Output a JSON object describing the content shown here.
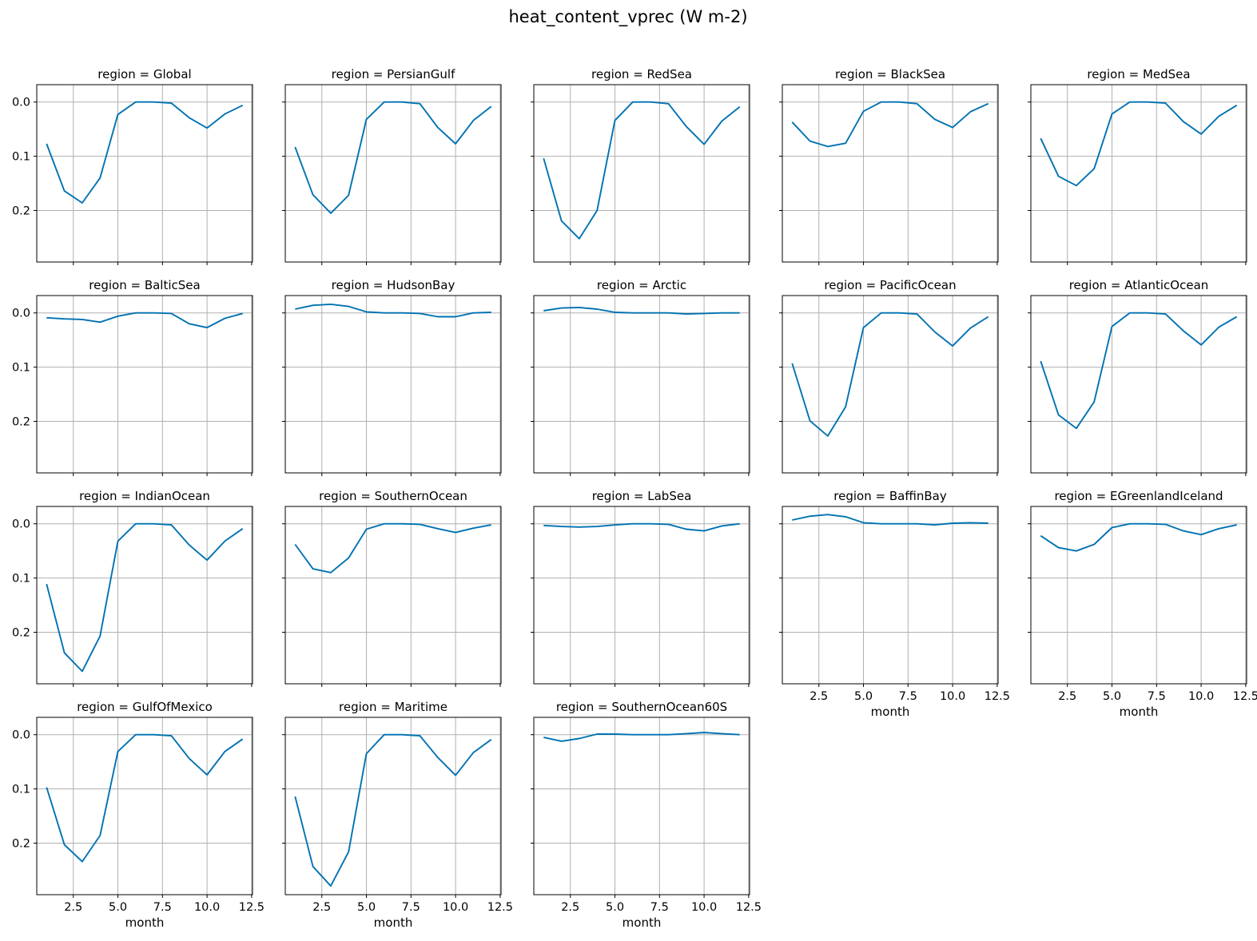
{
  "chart_data": {
    "type": "line",
    "title": "heat_content_vprec (W m-2)",
    "xlabel": "month",
    "ylabel": "",
    "xlim": [
      0.45,
      12.55
    ],
    "ylim": [
      0.295,
      -0.032
    ],
    "y_inverted": true,
    "grid": true,
    "color": "#0072b2",
    "x": [
      1,
      2,
      3,
      4,
      5,
      6,
      7,
      8,
      9,
      10,
      11,
      12
    ],
    "x_ticks": [
      2.5,
      5.0,
      7.5,
      10.0,
      12.5
    ],
    "x_tick_labels": [
      "2.5",
      "5.0",
      "7.5",
      "10.0",
      "12.5"
    ],
    "y_ticks": [
      0.0,
      0.1,
      0.2
    ],
    "y_tick_labels": [
      "0.0",
      "0.1",
      "0.2"
    ],
    "title_prefix": "region = ",
    "series": [
      {
        "name": "Global",
        "values": [
          0.077,
          0.164,
          0.186,
          0.14,
          0.023,
          0.0,
          0.0,
          0.002,
          0.029,
          0.048,
          0.022,
          0.006
        ]
      },
      {
        "name": "PersianGulf",
        "values": [
          0.083,
          0.171,
          0.205,
          0.172,
          0.032,
          0.0,
          0.0,
          0.003,
          0.047,
          0.077,
          0.034,
          0.008
        ]
      },
      {
        "name": "RedSea",
        "values": [
          0.104,
          0.219,
          0.252,
          0.2,
          0.034,
          0.0,
          0.0,
          0.003,
          0.045,
          0.078,
          0.035,
          0.009
        ]
      },
      {
        "name": "BlackSea",
        "values": [
          0.037,
          0.072,
          0.082,
          0.076,
          0.017,
          0.0,
          0.0,
          0.003,
          0.032,
          0.047,
          0.018,
          0.003
        ]
      },
      {
        "name": "MedSea",
        "values": [
          0.067,
          0.137,
          0.154,
          0.123,
          0.022,
          0.0,
          0.0,
          0.002,
          0.036,
          0.059,
          0.026,
          0.006
        ]
      },
      {
        "name": "BalticSea",
        "values": [
          0.009,
          0.011,
          0.012,
          0.017,
          0.006,
          0.0,
          0.0,
          0.001,
          0.02,
          0.027,
          0.01,
          0.001
        ]
      },
      {
        "name": "HudsonBay",
        "values": [
          -0.007,
          -0.014,
          -0.016,
          -0.012,
          -0.002,
          0.0,
          0.0,
          0.001,
          0.007,
          0.007,
          0.0,
          -0.001
        ]
      },
      {
        "name": "Arctic",
        "values": [
          -0.004,
          -0.009,
          -0.01,
          -0.007,
          -0.001,
          0.0,
          0.0,
          0.0,
          0.002,
          0.001,
          0.0,
          0.0
        ]
      },
      {
        "name": "PacificOcean",
        "values": [
          0.093,
          0.199,
          0.227,
          0.173,
          0.027,
          0.0,
          0.0,
          0.002,
          0.035,
          0.061,
          0.028,
          0.007
        ]
      },
      {
        "name": "AtlanticOcean",
        "values": [
          0.089,
          0.188,
          0.213,
          0.164,
          0.025,
          0.0,
          0.0,
          0.002,
          0.033,
          0.059,
          0.026,
          0.007
        ]
      },
      {
        "name": "IndianOcean",
        "values": [
          0.111,
          0.238,
          0.272,
          0.207,
          0.032,
          0.0,
          0.0,
          0.002,
          0.039,
          0.067,
          0.032,
          0.009
        ]
      },
      {
        "name": "SouthernOcean",
        "values": [
          0.038,
          0.083,
          0.09,
          0.063,
          0.01,
          0.0,
          0.0,
          0.001,
          0.009,
          0.016,
          0.008,
          0.002
        ]
      },
      {
        "name": "LabSea",
        "values": [
          0.003,
          0.005,
          0.006,
          0.005,
          0.002,
          0.0,
          0.0,
          0.001,
          0.01,
          0.013,
          0.004,
          0.0
        ]
      },
      {
        "name": "BaffinBay",
        "values": [
          -0.007,
          -0.014,
          -0.017,
          -0.013,
          -0.002,
          0.0,
          0.0,
          0.0,
          0.002,
          -0.001,
          -0.002,
          -0.001
        ]
      },
      {
        "name": "EGreenlandIceland",
        "values": [
          0.022,
          0.044,
          0.05,
          0.038,
          0.007,
          0.0,
          0.0,
          0.001,
          0.013,
          0.02,
          0.009,
          0.002
        ]
      },
      {
        "name": "GulfOfMexico",
        "values": [
          0.097,
          0.203,
          0.234,
          0.186,
          0.031,
          0.0,
          0.0,
          0.002,
          0.044,
          0.074,
          0.031,
          0.008
        ]
      },
      {
        "name": "Maritime",
        "values": [
          0.114,
          0.243,
          0.279,
          0.216,
          0.035,
          0.0,
          0.0,
          0.002,
          0.042,
          0.075,
          0.033,
          0.009
        ]
      },
      {
        "name": "SouthernOcean60S",
        "values": [
          0.005,
          0.012,
          0.007,
          -0.001,
          -0.001,
          0.0,
          0.0,
          0.0,
          -0.002,
          -0.004,
          -0.002,
          0.0
        ]
      }
    ]
  }
}
